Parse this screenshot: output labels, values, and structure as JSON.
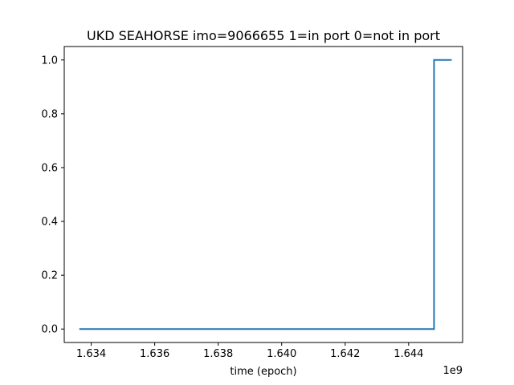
{
  "chart_data": {
    "type": "line",
    "title": "UKD SEAHORSE imo=9066655 1=in port 0=not in port",
    "xlabel": "time (epoch)",
    "ylabel": "",
    "x_offset_label": "1e9",
    "x_scale": 1000000000,
    "xlim": [
      1.63315,
      1.6457
    ],
    "ylim": [
      -0.05,
      1.05
    ],
    "x_ticks": [
      1.634,
      1.636,
      1.638,
      1.64,
      1.642,
      1.644
    ],
    "x_tick_labels": [
      "1.634",
      "1.636",
      "1.638",
      "1.640",
      "1.642",
      "1.644"
    ],
    "y_ticks": [
      0.0,
      0.2,
      0.4,
      0.6,
      0.8,
      1.0
    ],
    "y_tick_labels": [
      "0.0",
      "0.2",
      "0.4",
      "0.6",
      "0.8",
      "1.0"
    ],
    "grid": false,
    "series": [
      {
        "color": "#1f77b4",
        "x": [
          1.63365,
          1.6448,
          1.6448,
          1.64533
        ],
        "y": [
          0,
          0,
          1,
          1
        ]
      }
    ]
  }
}
